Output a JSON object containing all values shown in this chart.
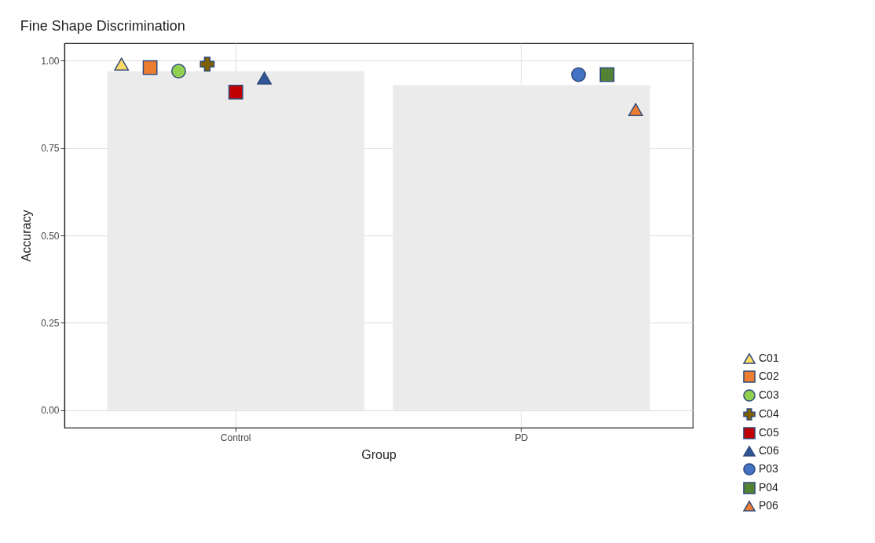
{
  "chart_data": {
    "type": "scatter",
    "title": "Fine Shape Discrimination",
    "xlabel": "Group",
    "ylabel": "Accuracy",
    "categories": [
      "Control",
      "PD"
    ],
    "ylim": [
      -0.05,
      1.05
    ],
    "yticks": [
      {
        "value": 0,
        "label": "0.00"
      },
      {
        "value": 0.25,
        "label": "0.25"
      },
      {
        "value": 0.5,
        "label": "0.50"
      },
      {
        "value": 0.75,
        "label": "0.75"
      },
      {
        "value": 1,
        "label": "1.00"
      }
    ],
    "grid": true,
    "legend": "bottom right",
    "series": [
      {
        "type": "bar",
        "color": "#ebebeb",
        "values": [
          0.97,
          0.93
        ]
      },
      {
        "name": "C01",
        "color": "#ffd966",
        "marker": "triangle",
        "x": [
          "Control"
        ],
        "values": [
          0.99
        ]
      },
      {
        "name": "C02",
        "color": "#ed7d31",
        "marker": "square",
        "x": [
          "Control"
        ],
        "values": [
          0.98
        ]
      },
      {
        "name": "C03",
        "color": "#92d050",
        "marker": "circle",
        "x": [
          "Control"
        ],
        "values": [
          0.97
        ]
      },
      {
        "name": "C04",
        "color": "#7f6000",
        "marker": "cross",
        "x": [
          "Control"
        ],
        "values": [
          0.99
        ]
      },
      {
        "name": "C05",
        "color": "#c00000",
        "marker": "square",
        "x": [
          "Control"
        ],
        "values": [
          0.91
        ]
      },
      {
        "name": "C06",
        "color": "#2f5597",
        "marker": "triangle",
        "x": [
          "Control"
        ],
        "values": [
          0.95
        ]
      },
      {
        "name": "P03",
        "color": "#4472c4",
        "marker": "circle",
        "x": [
          "PD"
        ],
        "values": [
          0.96
        ]
      },
      {
        "name": "P04",
        "color": "#548235",
        "marker": "square",
        "x": [
          "PD"
        ],
        "values": [
          0.96
        ]
      },
      {
        "name": "P06",
        "color": "#ed7d31",
        "marker": "triangle",
        "x": [
          "PD"
        ],
        "values": [
          0.86
        ]
      }
    ]
  }
}
